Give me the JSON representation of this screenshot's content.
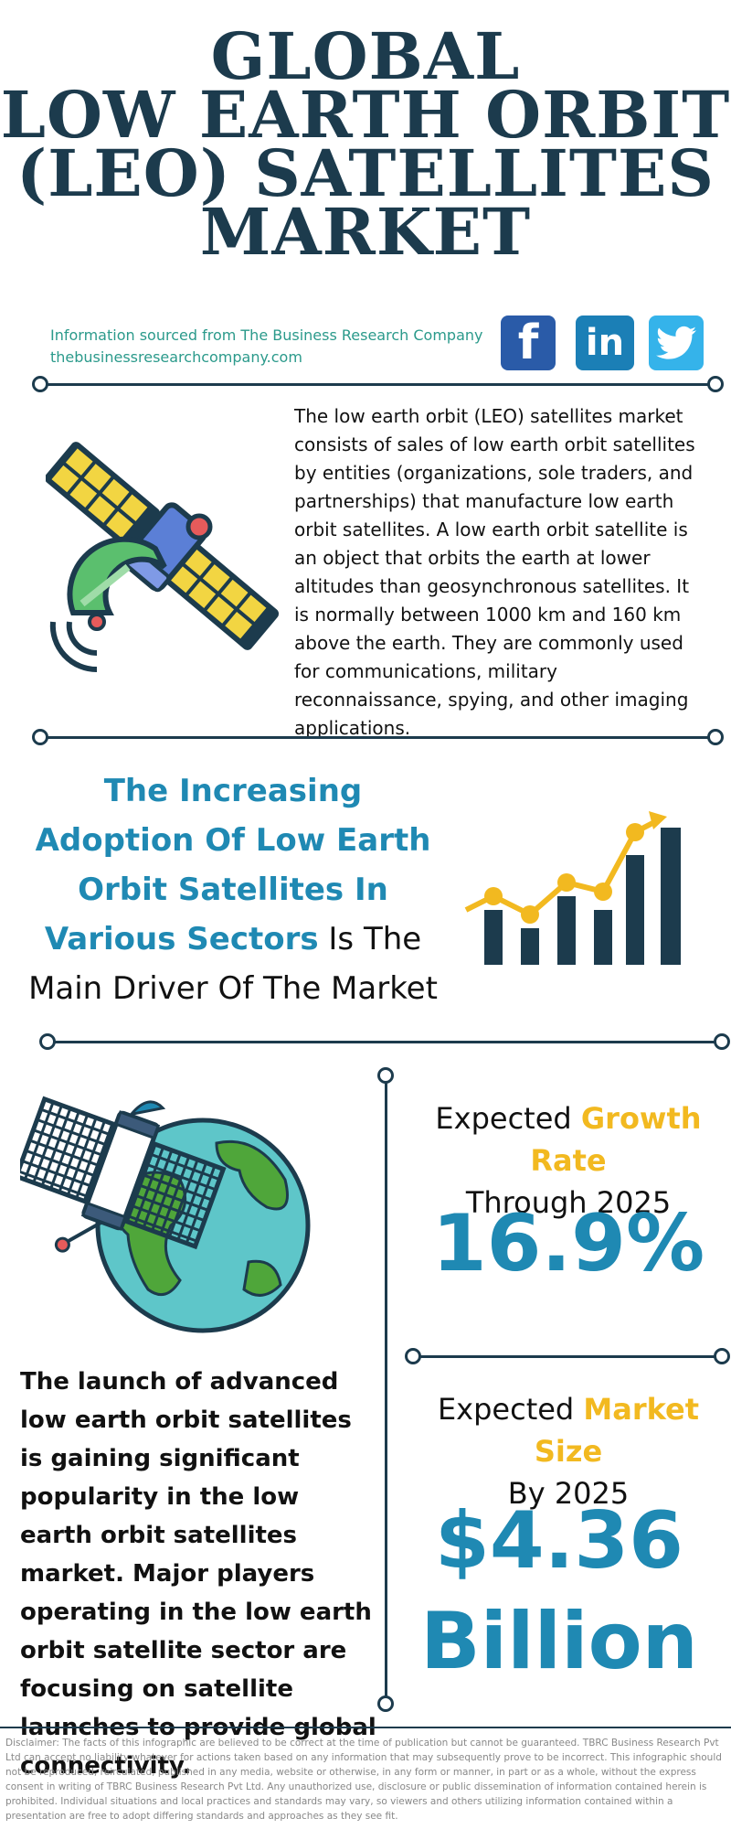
{
  "title": {
    "line1": "GLOBAL",
    "line2": "LOW EARTH ORBIT",
    "line3": "(LEO) SATELLITES",
    "line4": "MARKET"
  },
  "source": {
    "line1": "Information sourced from The Business Research Company",
    "line2": "thebusinessresearchcompany.com"
  },
  "social": {
    "facebook_glyph": "f",
    "linkedin_glyph": "in"
  },
  "description": "The low earth orbit (LEO) satellites market consists of sales of low earth orbit satellites by entities (organizations, sole traders, and partnerships) that manufacture low earth orbit satellites. A low earth orbit satellite is an object that orbits the earth at lower altitudes than geosynchronous satellites. It is normally between 1000 km and 160 km above the earth. They are commonly used for communications, military reconnaissance, spying, and other imaging applications.",
  "driver": {
    "highlight": "The Increasing Adoption Of Low Earth Orbit Satellites In Various Sectors",
    "rest": " Is The Main Driver Of The Market"
  },
  "growth": {
    "prefix": "Expected ",
    "highlight": "Growth Rate",
    "line2": "Through 2025",
    "value": "16.9%"
  },
  "market_size": {
    "prefix": "Expected ",
    "highlight": "Market Size",
    "line2": "By 2025",
    "value_line1": "$4.36",
    "value_line2": "Billion"
  },
  "launch_text": "The launch of advanced low earth orbit satellites is gaining significant popularity in the low earth orbit satellites market. Major players operating in the low earth orbit satellite sector are focusing on satellite launches to provide global connectivity.",
  "disclaimer": "Disclaimer: The facts of this infographic are believed to be correct at the time of publication but cannot be guaranteed. TBRC Business Research Pvt Ltd can accept no liability whatever for actions taken based on any information that may subsequently prove to be incorrect. This infographic should not be reproduced, reirculated, published in any media, website or otherwise, in any form or manner, in part or as a whole, without the express consent in writing of TBRC Business Research Pvt Ltd. Any unauthorized use, disclosure or public dissemination of information contained herein is prohibited. Individual situations and local practices and standards may vary, so viewers and others utilizing information contained within a presentation are free to adopt differing standards and approaches as they see fit.",
  "colors": {
    "navy": "#1c3b4d",
    "teal_text": "#2b9a8b",
    "blue_accent": "#1f89b3",
    "gold_accent": "#f2b920"
  },
  "icons": [
    "facebook-icon",
    "linkedin-icon",
    "twitter-icon",
    "satellite-icon",
    "growth-chart-icon",
    "satellite-globe-icon"
  ]
}
